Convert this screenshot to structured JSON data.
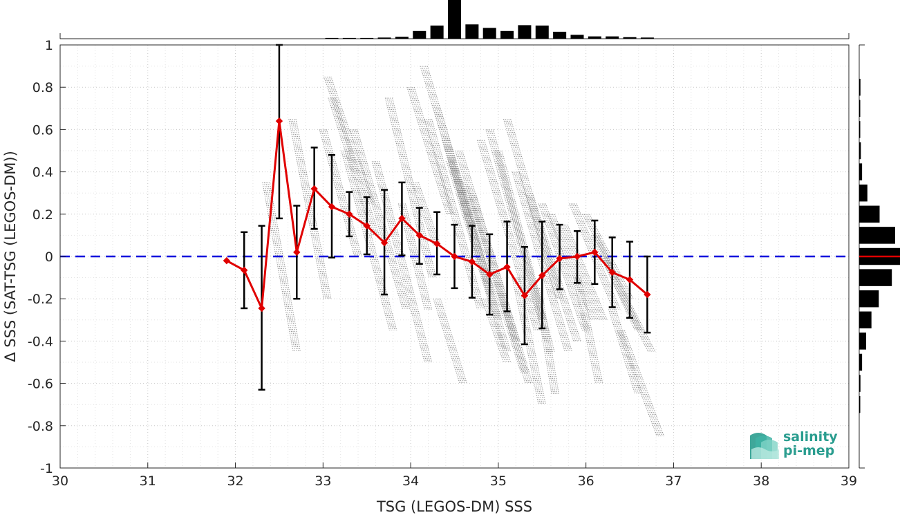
{
  "chart_data": {
    "type": "scatter",
    "xlabel": "TSG (LEGOS-DM) SSS",
    "ylabel": "Δ SSS (SAT-TSG (LEGOS-DM))",
    "xlim": [
      30,
      39
    ],
    "ylim": [
      -1,
      1
    ],
    "x_ticks": [
      "30",
      "31",
      "32",
      "33",
      "34",
      "35",
      "36",
      "37",
      "38",
      "39"
    ],
    "y_ticks": [
      "1",
      "0.8",
      "0.6",
      "0.4",
      "0.2",
      "0",
      "-0.2",
      "-0.4",
      "-0.6",
      "-0.8",
      "-1"
    ],
    "grid": "dotted",
    "zero_line": {
      "y": 0,
      "color": "#0000dd",
      "style": "dashed"
    },
    "binned_mean": {
      "color": "#e00000",
      "x": [
        31.9,
        32.1,
        32.3,
        32.5,
        32.7,
        32.9,
        33.1,
        33.3,
        33.5,
        33.7,
        33.9,
        34.1,
        34.3,
        34.5,
        34.7,
        34.9,
        35.1,
        35.3,
        35.5,
        35.7,
        35.9,
        36.1,
        36.3,
        36.5,
        36.7
      ],
      "y": [
        -0.02,
        -0.065,
        -0.245,
        0.64,
        0.02,
        0.32,
        0.235,
        0.2,
        0.145,
        0.065,
        0.18,
        0.1,
        0.06,
        0.0,
        -0.025,
        -0.085,
        -0.05,
        -0.185,
        -0.09,
        -0.01,
        0.0,
        0.02,
        -0.075,
        -0.11,
        -0.18
      ]
    },
    "error_bars": {
      "color": "#000000",
      "x": [
        32.1,
        32.3,
        32.5,
        32.7,
        32.9,
        33.1,
        33.3,
        33.5,
        33.7,
        33.9,
        34.1,
        34.3,
        34.5,
        34.7,
        34.9,
        35.1,
        35.3,
        35.5,
        35.7,
        35.9,
        36.1,
        36.3,
        36.5,
        36.7
      ],
      "low": [
        -0.245,
        -0.63,
        0.18,
        -0.2,
        0.13,
        -0.005,
        0.095,
        0.01,
        -0.18,
        0.005,
        -0.035,
        -0.085,
        -0.15,
        -0.195,
        -0.275,
        -0.26,
        -0.415,
        -0.34,
        -0.155,
        -0.125,
        -0.13,
        -0.24,
        -0.29,
        -0.36
      ],
      "high": [
        0.115,
        0.145,
        1.0,
        0.24,
        0.515,
        0.48,
        0.305,
        0.28,
        0.315,
        0.35,
        0.23,
        0.21,
        0.15,
        0.145,
        0.105,
        0.165,
        0.045,
        0.165,
        0.15,
        0.12,
        0.17,
        0.09,
        0.07,
        0.0
      ]
    },
    "scatter_streaks": {
      "color": "#8c8c8c",
      "segments": [
        [
          32.35,
          0.35,
          32.7,
          -0.45
        ],
        [
          32.65,
          0.65,
          33.05,
          -0.2
        ],
        [
          33.0,
          0.6,
          33.4,
          0.0
        ],
        [
          33.05,
          0.85,
          33.55,
          0.25
        ],
        [
          33.1,
          0.75,
          33.6,
          0.1
        ],
        [
          33.25,
          0.5,
          33.8,
          -0.35
        ],
        [
          33.35,
          0.6,
          33.95,
          -0.25
        ],
        [
          33.6,
          0.45,
          34.2,
          -0.5
        ],
        [
          33.75,
          0.75,
          34.25,
          -0.1
        ],
        [
          34.0,
          0.8,
          34.45,
          0.2
        ],
        [
          34.15,
          0.9,
          34.7,
          0.15
        ],
        [
          34.2,
          0.65,
          34.8,
          -0.25
        ],
        [
          34.3,
          0.7,
          34.9,
          -0.15
        ],
        [
          34.4,
          0.55,
          35.0,
          -0.3
        ],
        [
          34.45,
          0.45,
          35.1,
          -0.45
        ],
        [
          34.55,
          0.5,
          35.2,
          -0.4
        ],
        [
          34.6,
          0.35,
          35.3,
          -0.55
        ],
        [
          34.7,
          0.3,
          35.35,
          -0.6
        ],
        [
          34.8,
          0.55,
          35.45,
          -0.35
        ],
        [
          34.9,
          0.6,
          35.5,
          -0.3
        ],
        [
          35.0,
          0.5,
          35.6,
          -0.45
        ],
        [
          35.1,
          0.65,
          35.7,
          -0.2
        ],
        [
          35.2,
          0.4,
          35.8,
          -0.45
        ],
        [
          35.35,
          0.3,
          35.9,
          -0.4
        ],
        [
          35.5,
          0.25,
          36.0,
          -0.35
        ],
        [
          35.6,
          0.2,
          36.1,
          -0.3
        ],
        [
          35.75,
          0.15,
          36.2,
          -0.3
        ],
        [
          35.85,
          0.25,
          36.35,
          -0.25
        ],
        [
          36.0,
          0.2,
          36.5,
          -0.2
        ],
        [
          36.1,
          0.1,
          36.6,
          -0.35
        ],
        [
          36.2,
          0.0,
          36.75,
          -0.45
        ],
        [
          36.4,
          -0.35,
          36.85,
          -0.85
        ],
        [
          34.3,
          -0.2,
          34.6,
          -0.6
        ],
        [
          34.85,
          -0.2,
          35.1,
          -0.5
        ],
        [
          35.2,
          -0.1,
          35.5,
          -0.7
        ],
        [
          35.45,
          -0.15,
          35.65,
          -0.65
        ],
        [
          35.9,
          -0.1,
          36.15,
          -0.6
        ],
        [
          36.3,
          -0.25,
          36.6,
          -0.65
        ],
        [
          33.9,
          0.25,
          34.2,
          -0.25
        ],
        [
          34.05,
          0.35,
          34.3,
          0.05
        ]
      ]
    },
    "top_histogram": {
      "bin_centers": [
        33.1,
        33.3,
        33.5,
        33.7,
        33.9,
        34.1,
        34.3,
        34.5,
        34.7,
        34.9,
        35.1,
        35.3,
        35.5,
        35.7,
        35.9,
        36.1,
        36.3,
        36.5,
        36.7
      ],
      "heights": [
        0.02,
        0.02,
        0.02,
        0.03,
        0.05,
        0.2,
        0.34,
        1.0,
        0.37,
        0.28,
        0.2,
        0.35,
        0.34,
        0.18,
        0.1,
        0.06,
        0.06,
        0.04,
        0.03
      ]
    },
    "right_histogram": {
      "bin_centers": [
        0.8,
        0.7,
        0.6,
        0.5,
        0.4,
        0.3,
        0.2,
        0.1,
        0.0,
        -0.1,
        -0.2,
        -0.3,
        -0.4,
        -0.5,
        -0.6,
        -0.7
      ],
      "lengths": [
        0.03,
        0.02,
        0.02,
        0.04,
        0.07,
        0.2,
        0.5,
        0.88,
        1.0,
        0.8,
        0.48,
        0.3,
        0.17,
        0.07,
        0.03,
        0.02
      ],
      "median_marker": {
        "y": 0.0,
        "color": "#e00000"
      }
    }
  },
  "logo": {
    "line1": "salinity",
    "line2": "pi-mep",
    "color": "#2a9d8f"
  }
}
